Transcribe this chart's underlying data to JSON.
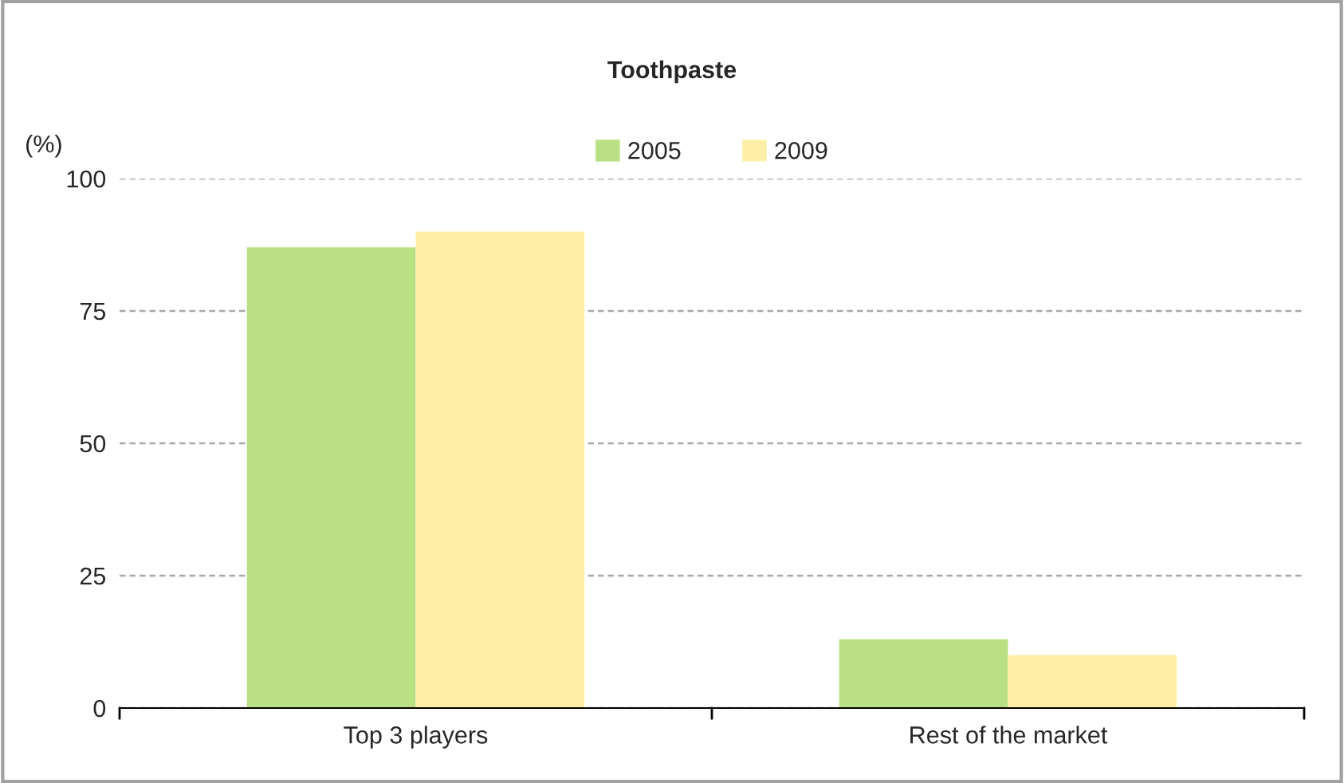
{
  "chart_data": {
    "type": "bar",
    "title": "Toothpaste",
    "ylabel": "(%)",
    "categories": [
      "Top 3 players",
      "Rest of the market"
    ],
    "series": [
      {
        "name": "2005",
        "color": "#b9e083",
        "values": [
          87,
          13
        ]
      },
      {
        "name": "2009",
        "color": "#fdf0a6",
        "values": [
          90,
          10
        ]
      }
    ],
    "ylim": [
      0,
      100
    ],
    "yticks": [
      0,
      25,
      50,
      75,
      100
    ],
    "grid": "y",
    "legend": "top"
  }
}
